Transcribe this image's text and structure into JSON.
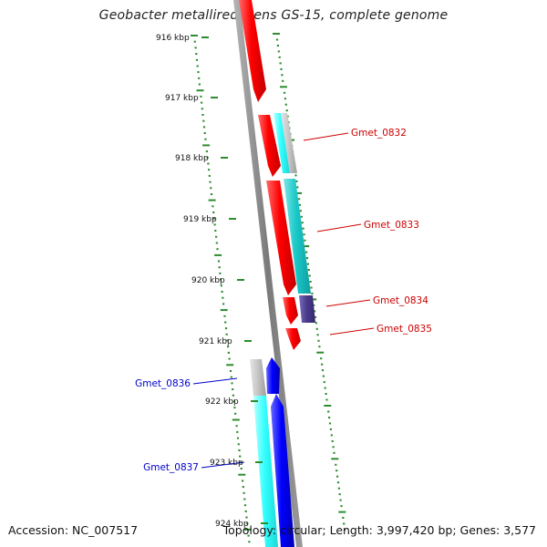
{
  "title": "Geobacter metallireducens GS-15, complete genome",
  "footer": {
    "accession": "Accession: NC_007517",
    "summary": "Topology: circular; Length: 3,997,420 bp; Genes: 3,577"
  },
  "colors": {
    "background": "#ffffff",
    "backbone": "#8a8a8a",
    "tick": "#2e8b2e",
    "gene_red": "#ff1a1a",
    "gene_cyan": "#19c9c9",
    "gene_cyan_light": "#33ffff",
    "gene_gray": "#bdbdbd",
    "gene_purple": "#4b3c8c",
    "gene_blue": "#1a1aff",
    "label_red": "#cc0000",
    "label_blue": "#0000cc"
  },
  "ruler": [
    {
      "label": "916 kbp"
    },
    {
      "label": "917 kbp"
    },
    {
      "label": "918 kbp"
    },
    {
      "label": "919 kbp"
    },
    {
      "label": "920 kbp"
    },
    {
      "label": "921 kbp"
    },
    {
      "label": "922 kbp"
    },
    {
      "label": "923 kbp"
    },
    {
      "label": "924 kbp"
    }
  ],
  "gene_labels": [
    {
      "name": "Gmet_0832",
      "color": "label_red"
    },
    {
      "name": "Gmet_0833",
      "color": "label_red"
    },
    {
      "name": "Gmet_0834",
      "color": "label_red"
    },
    {
      "name": "Gmet_0835",
      "color": "label_red"
    },
    {
      "name": "Gmet_0836",
      "color": "label_blue"
    },
    {
      "name": "Gmet_0837",
      "color": "label_blue"
    }
  ]
}
